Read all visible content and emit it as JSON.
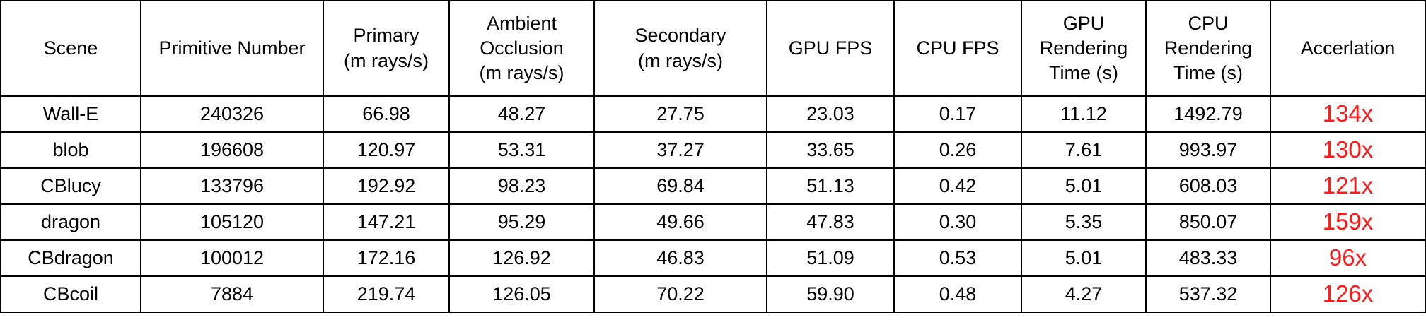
{
  "table": {
    "headers": [
      [
        "Scene"
      ],
      [
        "Primitive Number"
      ],
      [
        "Primary",
        "(m rays/s)"
      ],
      [
        "Ambient",
        "Occlusion",
        "(m rays/s)"
      ],
      [
        "Secondary",
        "(m rays/s)"
      ],
      [
        "GPU FPS"
      ],
      [
        "CPU FPS"
      ],
      [
        "GPU",
        "Rendering",
        "Time (s)"
      ],
      [
        "CPU",
        "Rendering",
        "Time (s)"
      ],
      [
        "Accerlation"
      ]
    ],
    "rows": [
      [
        "Wall-E",
        "240326",
        "66.98",
        "48.27",
        "27.75",
        "23.03",
        "0.17",
        "11.12",
        "1492.79",
        "134x"
      ],
      [
        "blob",
        "196608",
        "120.97",
        "53.31",
        "37.27",
        "33.65",
        "0.26",
        "7.61",
        "993.97",
        "130x"
      ],
      [
        "CBlucy",
        "133796",
        "192.92",
        "98.23",
        "69.84",
        "51.13",
        "0.42",
        "5.01",
        "608.03",
        "121x"
      ],
      [
        "dragon",
        "105120",
        "147.21",
        "95.29",
        "49.66",
        "47.83",
        "0.30",
        "5.35",
        "850.07",
        "159x"
      ],
      [
        "CBdragon",
        "100012",
        "172.16",
        "126.92",
        "46.83",
        "51.09",
        "0.53",
        "5.01",
        "483.33",
        "96x"
      ],
      [
        "CBcoil",
        "7884",
        "219.74",
        "126.05",
        "70.22",
        "59.90",
        "0.48",
        "4.27",
        "537.32",
        "126x"
      ]
    ]
  },
  "colors": {
    "accent": "#ff1a1a",
    "border": "#000000",
    "text": "#000000"
  }
}
